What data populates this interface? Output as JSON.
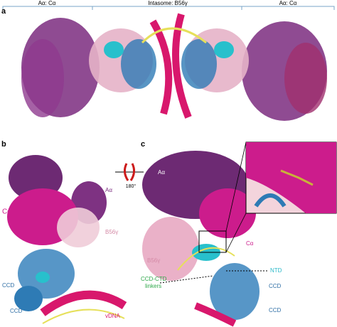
{
  "panel_a": {
    "label": "a",
    "brackets": [
      "Aα: Cα",
      "Intasome: B56γ",
      "Aα: Cα"
    ]
  },
  "panel_b": {
    "label": "b",
    "rotation": "180°",
    "labels": [
      "Aα",
      "Cα",
      "B56γ",
      "CCD",
      "CCD",
      "vDNA"
    ]
  },
  "panel_c": {
    "label": "c",
    "labels": [
      "Aα",
      "Cα",
      "B56γ",
      "NTD",
      "CCD",
      "CCD",
      "CCD-CTD",
      "linkers"
    ]
  }
}
